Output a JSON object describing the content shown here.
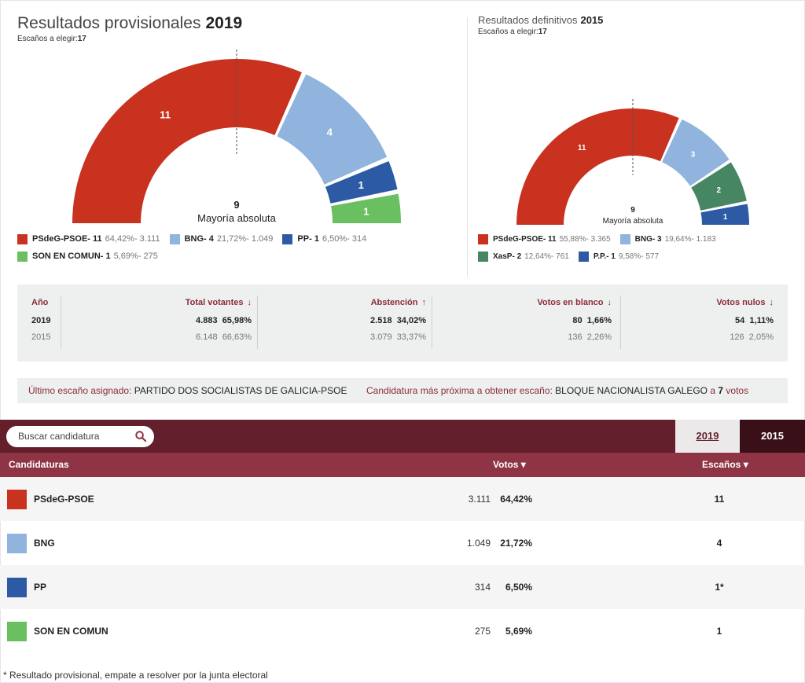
{
  "left_panel": {
    "title": "Resultados provisionales",
    "year": "2019",
    "seats_label": "Escaños a elegir:",
    "seats_value": "17",
    "majority_number": "9",
    "majority_label": "Mayoría absoluta",
    "segments": [
      {
        "seats": 11,
        "color": "#c8321f",
        "label": "11"
      },
      {
        "seats": 4,
        "color": "#90b4dd",
        "label": "4"
      },
      {
        "seats": 1,
        "color": "#2d5aa4",
        "label": "1"
      },
      {
        "seats": 1,
        "color": "#6ac060",
        "label": "1"
      }
    ],
    "legend": [
      {
        "name": "PSdeG-PSOE- 11",
        "stat": "64,42%- 3.111",
        "color": "#c8321f"
      },
      {
        "name": "BNG- 4",
        "stat": "21,72%- 1.049",
        "color": "#90b4dd"
      },
      {
        "name": "PP- 1",
        "stat": "6,50%- 314",
        "color": "#2d5aa4"
      },
      {
        "name": "SON EN COMUN- 1",
        "stat": "5,69%- 275",
        "color": "#6ac060"
      }
    ]
  },
  "right_panel": {
    "title": "Resultados definitivos",
    "year": "2015",
    "seats_label": "Escaños a elegir:",
    "seats_value": "17",
    "majority_number": "9",
    "majority_label": "Mayoría absoluta",
    "segments": [
      {
        "seats": 11,
        "color": "#c8321f",
        "label": "11"
      },
      {
        "seats": 3,
        "color": "#90b4dd",
        "label": "3"
      },
      {
        "seats": 2,
        "color": "#468662",
        "label": "2"
      },
      {
        "seats": 1,
        "color": "#2d5aa4",
        "label": "1"
      }
    ],
    "legend": [
      {
        "name": "PSdeG-PSOE- 11",
        "stat": "55,88%- 3.365",
        "color": "#c8321f"
      },
      {
        "name": "BNG- 3",
        "stat": "19,64%- 1.183",
        "color": "#90b4dd"
      },
      {
        "name": "XasP- 2",
        "stat": "12,64%- 761",
        "color": "#468662"
      },
      {
        "name": "P.P.- 1",
        "stat": "9,58%- 577",
        "color": "#2d5aa4"
      }
    ]
  },
  "stats": {
    "headers": {
      "year": "Año",
      "total": "Total votantes",
      "abst": "Abstención",
      "blank": "Votos en blanco",
      "null": "Votos nulos"
    },
    "arrows": {
      "total": "↓",
      "abst": "↑",
      "blank": "↓",
      "null": "↓"
    },
    "rows": [
      {
        "year": "2019",
        "total": "4.883",
        "total_pct": "65,98%",
        "abst": "2.518",
        "abst_pct": "34,02%",
        "blank": "80",
        "blank_pct": "1,66%",
        "null": "54",
        "null_pct": "1,11%"
      },
      {
        "year": "2015",
        "total": "6.148",
        "total_pct": "66,63%",
        "abst": "3.079",
        "abst_pct": "33,37%",
        "blank": "136",
        "blank_pct": "2,26%",
        "null": "126",
        "null_pct": "2,05%"
      }
    ]
  },
  "info": {
    "last_seat_label": "Último escaño asignado:",
    "last_seat_value": "PARTIDO DOS SOCIALISTAS DE GALICIA-PSOE",
    "next_label": "Candidatura más próxima a obtener escaño:",
    "next_value": "BLOQUE NACIONALISTA GALEGO",
    "next_by": "a",
    "next_votes": "7",
    "next_votes_unit": "votos"
  },
  "results": {
    "search_placeholder": "Buscar candidatura",
    "tabs": [
      "2019",
      "2015"
    ],
    "col_party": "Candidaturas",
    "col_votes": "Votos",
    "col_seats": "Escaños",
    "sort_glyph": "▾",
    "rows": [
      {
        "name": "PSdeG-PSOE",
        "votes": "3.111",
        "pct": "64,42%",
        "seats": "11",
        "color": "#c8321f"
      },
      {
        "name": "BNG",
        "votes": "1.049",
        "pct": "21,72%",
        "seats": "4",
        "color": "#90b4dd"
      },
      {
        "name": "PP",
        "votes": "314",
        "pct": "6,50%",
        "seats": "1*",
        "color": "#2d5aa4"
      },
      {
        "name": "SON EN COMUN",
        "votes": "275",
        "pct": "5,69%",
        "seats": "1",
        "color": "#6ac060"
      }
    ]
  },
  "footnote": "* Resultado provisional, empate a resolver por la junta electoral"
}
